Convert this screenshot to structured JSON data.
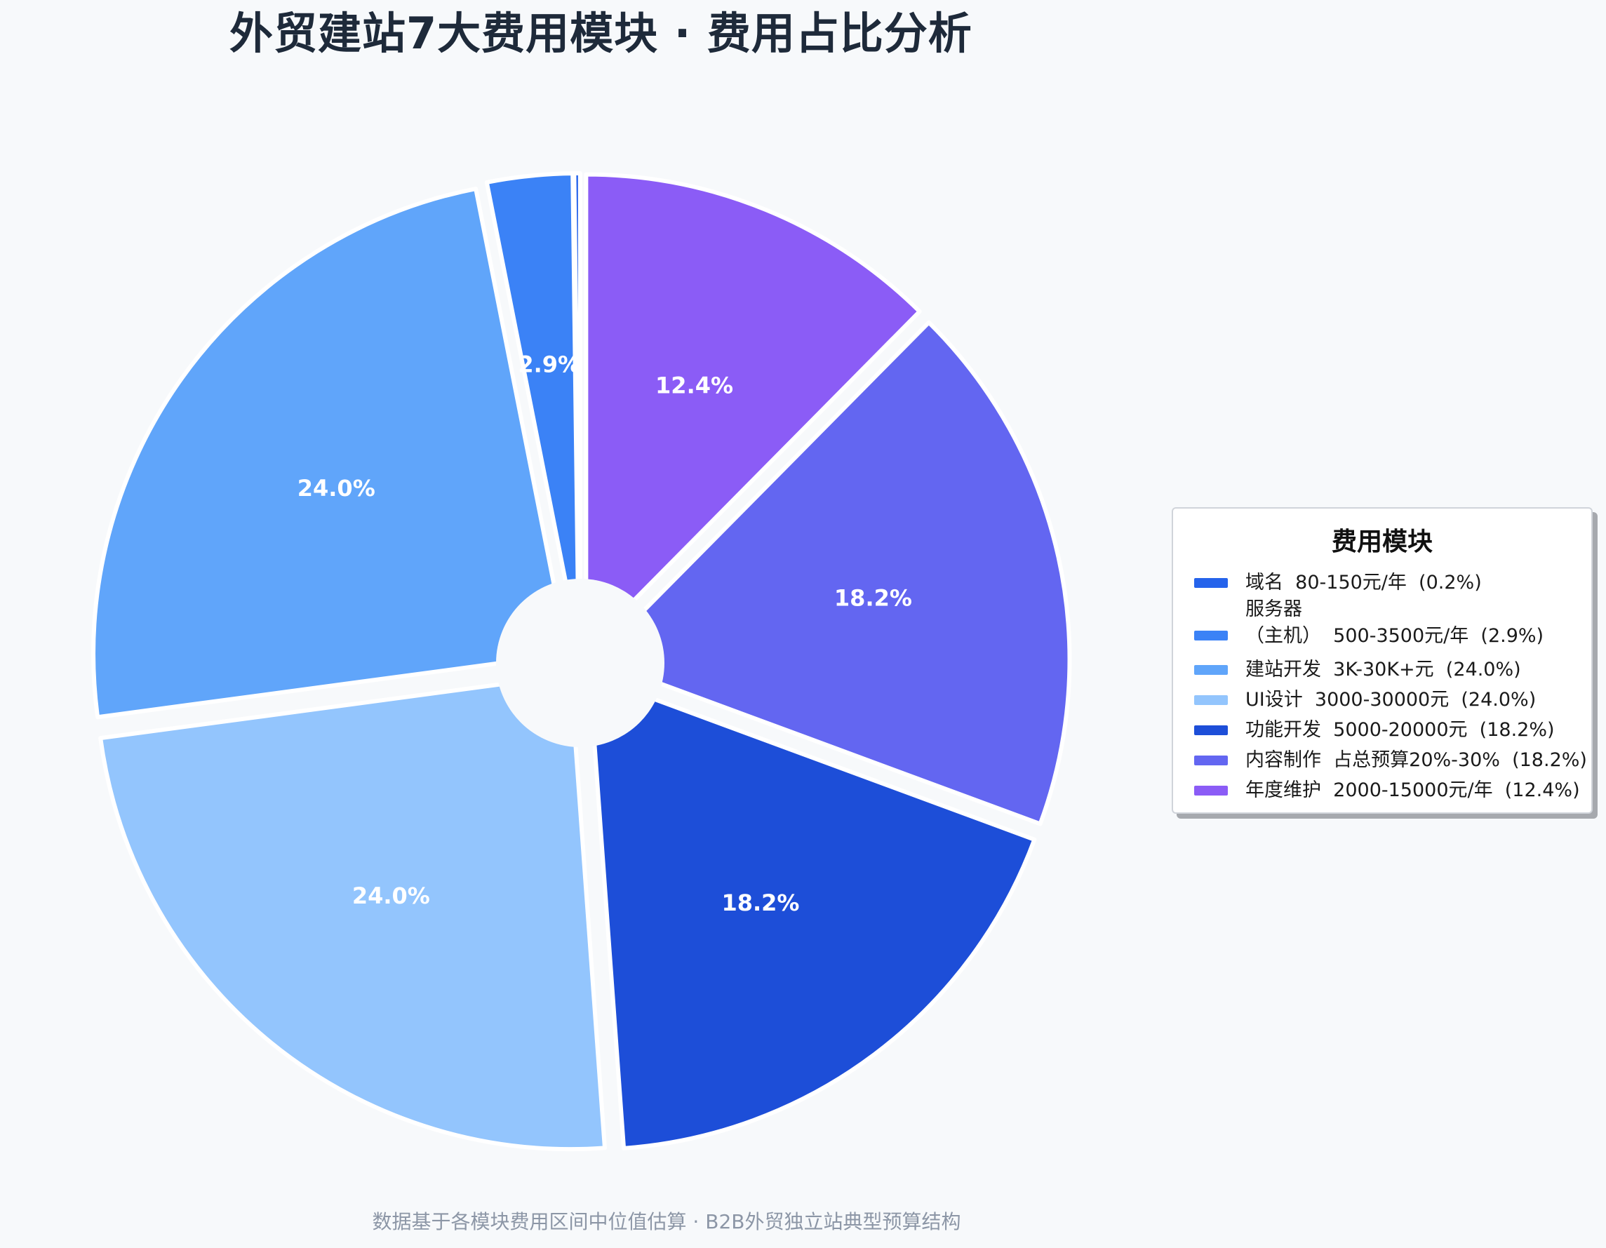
{
  "chart_data": {
    "type": "pie",
    "title": "外贸建站7大费用模块 · 费用占比分析",
    "categories": [
      "域名",
      "服务器（主机）",
      "建站开发",
      "UI设计",
      "功能开发",
      "内容制作",
      "年度维护"
    ],
    "values": [
      0.2,
      2.9,
      24.0,
      24.0,
      18.2,
      18.2,
      12.4
    ],
    "value_labels": [
      "",
      "2.9%",
      "24.0%",
      "24.0%",
      "18.2%",
      "18.2%",
      "12.4%"
    ],
    "colors": [
      "#2563eb",
      "#3b82f6",
      "#60a5fa",
      "#93c5fd",
      "#1d4ed8",
      "#6366f1",
      "#8b5cf6"
    ],
    "legend": {
      "title": "费用模块",
      "placement": "right",
      "entries": [
        "域名  80-150元/年  (0.2%)",
        "服务器\n（主机）  500-3500元/年  (2.9%)",
        "建站开发  3K-30K+元  (24.0%)",
        "UI设计  3000-30000元  (24.0%)",
        "功能开发  5000-20000元  (18.2%)",
        "内容制作  占总预算20%-30%  (18.2%)",
        "年度维护  2000-15000元/年  (12.4%)"
      ]
    },
    "footnote": "数据基于各模块费用区间中位值估算 · B2B外贸独立站典型预算结构",
    "start_angle": 90,
    "direction": "counterclockwise",
    "donut_hole": true,
    "exploded": true
  }
}
